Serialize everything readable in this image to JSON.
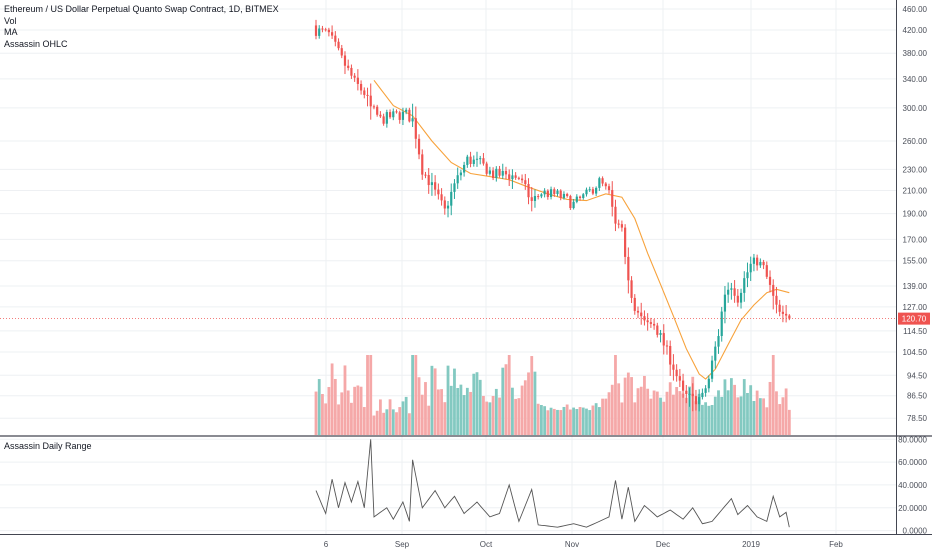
{
  "legend": {
    "title": "Ethereum / US Dollar Perpetual Quanto Swap Contract, 1D, BITMEX",
    "vol": "Vol",
    "ma": "MA",
    "ohlc": "Assassin OHLC"
  },
  "sub_legend": "Assassin Daily Range",
  "colors": {
    "up": "#26a69a",
    "down": "#ef5350",
    "vol_up": "#83c9c1",
    "vol_down": "#f5a8a8",
    "ma": "#f7a23b",
    "price_line": "#ef5350",
    "range_line": "#555555",
    "grid": "#eef0f3"
  },
  "chart_data": [
    {
      "type": "candlestick",
      "title": "Ethereum / US Dollar Perpetual Quanto Swap Contract, 1D, BITMEX",
      "y_scale": "log",
      "ylim": [
        73,
        470
      ],
      "y_ticks": [
        "460.00",
        "420.00",
        "380.00",
        "340.00",
        "300.00",
        "260.00",
        "230.00",
        "210.00",
        "190.00",
        "170.00",
        "155.00",
        "139.00",
        "127.00",
        "114.50",
        "104.50",
        "94.50",
        "86.50",
        "78.50"
      ],
      "x_tick_labels": [
        "6",
        "Sep",
        "Oct",
        "Nov",
        "Dec",
        "2019",
        "Feb"
      ],
      "last_price_label": "120.70",
      "anchors": [
        {
          "day": 0,
          "price": 420
        },
        {
          "day": 4,
          "price": 412
        },
        {
          "day": 8,
          "price": 370
        },
        {
          "day": 12,
          "price": 335
        },
        {
          "day": 15,
          "price": 320
        },
        {
          "day": 17,
          "price": 300
        },
        {
          "day": 20,
          "price": 285
        },
        {
          "day": 24,
          "price": 290
        },
        {
          "day": 28,
          "price": 292
        },
        {
          "day": 30,
          "price": 285
        },
        {
          "day": 33,
          "price": 230
        },
        {
          "day": 37,
          "price": 208
        },
        {
          "day": 40,
          "price": 192
        },
        {
          "day": 43,
          "price": 215
        },
        {
          "day": 47,
          "price": 240
        },
        {
          "day": 51,
          "price": 236
        },
        {
          "day": 55,
          "price": 225
        },
        {
          "day": 59,
          "price": 225
        },
        {
          "day": 63,
          "price": 222
        },
        {
          "day": 67,
          "price": 200
        },
        {
          "day": 70,
          "price": 208
        },
        {
          "day": 75,
          "price": 206
        },
        {
          "day": 80,
          "price": 198
        },
        {
          "day": 84,
          "price": 206
        },
        {
          "day": 88,
          "price": 218
        },
        {
          "day": 91,
          "price": 207
        },
        {
          "day": 93,
          "price": 180
        },
        {
          "day": 95,
          "price": 175
        },
        {
          "day": 97,
          "price": 145
        },
        {
          "day": 99,
          "price": 125
        },
        {
          "day": 102,
          "price": 118
        },
        {
          "day": 105,
          "price": 118
        },
        {
          "day": 108,
          "price": 108
        },
        {
          "day": 111,
          "price": 98
        },
        {
          "day": 114,
          "price": 87
        },
        {
          "day": 117,
          "price": 85
        },
        {
          "day": 120,
          "price": 86
        },
        {
          "day": 122,
          "price": 93
        },
        {
          "day": 125,
          "price": 113
        },
        {
          "day": 127,
          "price": 135
        },
        {
          "day": 129,
          "price": 140
        },
        {
          "day": 131,
          "price": 132
        },
        {
          "day": 133,
          "price": 143
        },
        {
          "day": 135,
          "price": 152
        },
        {
          "day": 137,
          "price": 155
        },
        {
          "day": 139,
          "price": 150
        },
        {
          "day": 141,
          "price": 138
        },
        {
          "day": 143,
          "price": 126
        },
        {
          "day": 145,
          "price": 121
        },
        {
          "day": 147,
          "price": 120.7
        }
      ],
      "ma_line": [
        {
          "day": 18,
          "price": 338
        },
        {
          "day": 24,
          "price": 303
        },
        {
          "day": 30,
          "price": 290
        },
        {
          "day": 36,
          "price": 260
        },
        {
          "day": 42,
          "price": 237
        },
        {
          "day": 48,
          "price": 226
        },
        {
          "day": 54,
          "price": 223
        },
        {
          "day": 60,
          "price": 220
        },
        {
          "day": 66,
          "price": 213
        },
        {
          "day": 72,
          "price": 207
        },
        {
          "day": 78,
          "price": 202
        },
        {
          "day": 84,
          "price": 201
        },
        {
          "day": 90,
          "price": 207
        },
        {
          "day": 95,
          "price": 204
        },
        {
          "day": 99,
          "price": 186
        },
        {
          "day": 103,
          "price": 160
        },
        {
          "day": 107,
          "price": 140
        },
        {
          "day": 111,
          "price": 122
        },
        {
          "day": 115,
          "price": 106
        },
        {
          "day": 119,
          "price": 95
        },
        {
          "day": 121,
          "price": 93
        },
        {
          "day": 124,
          "price": 97
        },
        {
          "day": 128,
          "price": 108
        },
        {
          "day": 132,
          "price": 120
        },
        {
          "day": 136,
          "price": 128
        },
        {
          "day": 140,
          "price": 135
        },
        {
          "day": 143,
          "price": 137
        },
        {
          "day": 147,
          "price": 135
        }
      ]
    },
    {
      "type": "line",
      "title": "Assassin Daily Range",
      "ylim": [
        -3,
        82
      ],
      "y_ticks": [
        "80.0000",
        "60.0000",
        "40.0000",
        "20.0000",
        "0.0000"
      ],
      "anchors": [
        {
          "day": 0,
          "value": 35
        },
        {
          "day": 3,
          "value": 15
        },
        {
          "day": 5,
          "value": 45
        },
        {
          "day": 7,
          "value": 20
        },
        {
          "day": 9,
          "value": 42
        },
        {
          "day": 11,
          "value": 25
        },
        {
          "day": 13,
          "value": 43
        },
        {
          "day": 15,
          "value": 20
        },
        {
          "day": 17,
          "value": 80
        },
        {
          "day": 18,
          "value": 12
        },
        {
          "day": 22,
          "value": 20
        },
        {
          "day": 24,
          "value": 10
        },
        {
          "day": 27,
          "value": 25
        },
        {
          "day": 29,
          "value": 8
        },
        {
          "day": 30,
          "value": 62
        },
        {
          "day": 33,
          "value": 20
        },
        {
          "day": 37,
          "value": 35
        },
        {
          "day": 40,
          "value": 20
        },
        {
          "day": 43,
          "value": 30
        },
        {
          "day": 46,
          "value": 15
        },
        {
          "day": 50,
          "value": 25
        },
        {
          "day": 54,
          "value": 12
        },
        {
          "day": 57,
          "value": 15
        },
        {
          "day": 60,
          "value": 40
        },
        {
          "day": 63,
          "value": 8
        },
        {
          "day": 67,
          "value": 36
        },
        {
          "day": 69,
          "value": 5
        },
        {
          "day": 75,
          "value": 3
        },
        {
          "day": 80,
          "value": 6
        },
        {
          "day": 84,
          "value": 3
        },
        {
          "day": 88,
          "value": 8
        },
        {
          "day": 91,
          "value": 12
        },
        {
          "day": 93,
          "value": 44
        },
        {
          "day": 95,
          "value": 10
        },
        {
          "day": 97,
          "value": 38
        },
        {
          "day": 99,
          "value": 8
        },
        {
          "day": 102,
          "value": 22
        },
        {
          "day": 106,
          "value": 12
        },
        {
          "day": 110,
          "value": 18
        },
        {
          "day": 114,
          "value": 10
        },
        {
          "day": 117,
          "value": 20
        },
        {
          "day": 120,
          "value": 6
        },
        {
          "day": 123,
          "value": 8
        },
        {
          "day": 126,
          "value": 18
        },
        {
          "day": 129,
          "value": 28
        },
        {
          "day": 131,
          "value": 14
        },
        {
          "day": 134,
          "value": 22
        },
        {
          "day": 137,
          "value": 12
        },
        {
          "day": 140,
          "value": 8
        },
        {
          "day": 142,
          "value": 30
        },
        {
          "day": 144,
          "value": 12
        },
        {
          "day": 146,
          "value": 16
        },
        {
          "day": 147,
          "value": 3
        }
      ]
    }
  ]
}
